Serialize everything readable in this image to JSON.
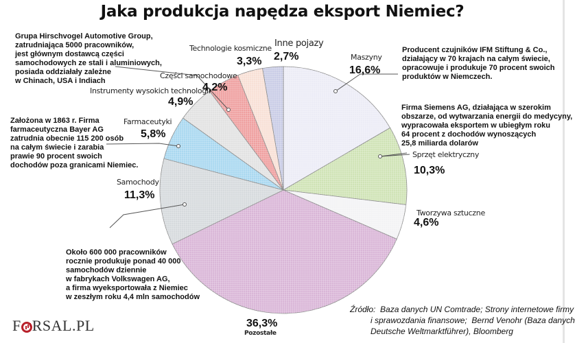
{
  "title": "Jaka produkcja napędza eksport Niemiec?",
  "chart_data": {
    "type": "pie",
    "title": "Jaka produkcja napędza eksport Niemiec?",
    "start_angle_deg": 0,
    "direction": "clockwise",
    "unit": "%",
    "slices": [
      {
        "label": "Maszyny",
        "value": 16.6,
        "display": "16,6%",
        "color": "#ececf6"
      },
      {
        "label": "Sprzęt elektryczny",
        "value": 10.3,
        "display": "10,3%",
        "color": "#cfe3b5"
      },
      {
        "label": "Tworzywa sztuczne",
        "value": 4.6,
        "display": "4,6%",
        "color": "#f3f3f5"
      },
      {
        "label": "Pozostałe",
        "value": 36.3,
        "display": "36,3%",
        "color": "#d9b5d7"
      },
      {
        "label": "Samochody",
        "value": 11.3,
        "display": "11,3%",
        "color": "#d6dadd"
      },
      {
        "label": "Farmaceutyki",
        "value": 5.8,
        "display": "5,8%",
        "color": "#a9d8f0"
      },
      {
        "label": "Instrumenty wysokich technologii",
        "value": 4.9,
        "display": "4,9%",
        "color": "#e2e2e2"
      },
      {
        "label": "Części samochodowe",
        "value": 4.2,
        "display": "4,2%",
        "color": "#ef9f9f"
      },
      {
        "label": "Technologie kosmiczne",
        "value": 3.3,
        "display": "3,3%",
        "color": "#f8e0d6"
      },
      {
        "label": "Inne pojazy",
        "value": 2.7,
        "display": "2,7%",
        "color": "#c9cce6"
      }
    ]
  },
  "labels": {
    "maszyny": {
      "name": "Maszyny",
      "pct": "16,6%"
    },
    "sprzet": {
      "name": "Sprzęt elektryczny",
      "pct": "10,3%"
    },
    "tworzywa": {
      "name": "Tworzywa sztuczne",
      "pct": "4,6%"
    },
    "pozostale": {
      "name": "Pozostałe",
      "pct": "36,3%"
    },
    "samochody": {
      "name": "Samochody",
      "pct": "11,3%"
    },
    "farmaceutyki": {
      "name": "Farmaceutyki",
      "pct": "5,8%"
    },
    "instrumenty": {
      "name": "Instrumenty wysokich technologii",
      "pct": "4,9%"
    },
    "czesci": {
      "name": "Części samochodowe",
      "pct": "4,2%"
    },
    "kosmiczne": {
      "name": "Technologie kosmiczne",
      "pct": "3,3%"
    },
    "inne": {
      "name": "Inne pojazy",
      "pct": "2,7%"
    }
  },
  "notes": {
    "hirschvogel": "Grupa Hirschvogel Automotive Group,\nzatrudniająca 5000 pracowników,\njest głównym dostawcą części\nsamochodowych ze stali i aluminiowych,\nposiada oddziałały zależne\nw Chinach, USA i Indiach",
    "ifm": "Producent czujników IFM Stiftung & Co.,\ndziałający w 70 krajach na całym świecie,\nopracowuje i produkuje 70 procent swoich\nproduktów w Niemczech.",
    "siemens": "Firma Siemens AG, działająca w szerokim\nobszarze, od wytwarzania energii do medycyny,\nwypracowała eksportem w ubiegłym roku\n64 procent z dochodów wynoszących\n25,8 miliarda dolarów",
    "bayer": "Założona w 1863 r. Firma\nfarmaceutyczna Bayer AG\nzatrudnia obecnie 115 200 osób\nna całym świecie i zarabia\nprawie 90 procent swoich\ndochodów poza granicami Niemiec.",
    "volkswagen": "Około 600 000 pracowników\nrocznie produkuje ponad 40 000\nsamochodów dziennie\nw fabrykach Volkswagen AG,\na firma wyeksportowała z Niemiec\nw zeszłym roku 4,4 mln samochodów"
  },
  "source": "Źródło:  Baza danych UN Comtrade; Strony internetowe firmy\n         i sprawozdania finansowe;  Bernd Venohr (Baza danych\n         Deutsche Weltmarktführer), Bloomberg",
  "logo": {
    "pre": "F",
    "post": "RSAL.PL"
  }
}
